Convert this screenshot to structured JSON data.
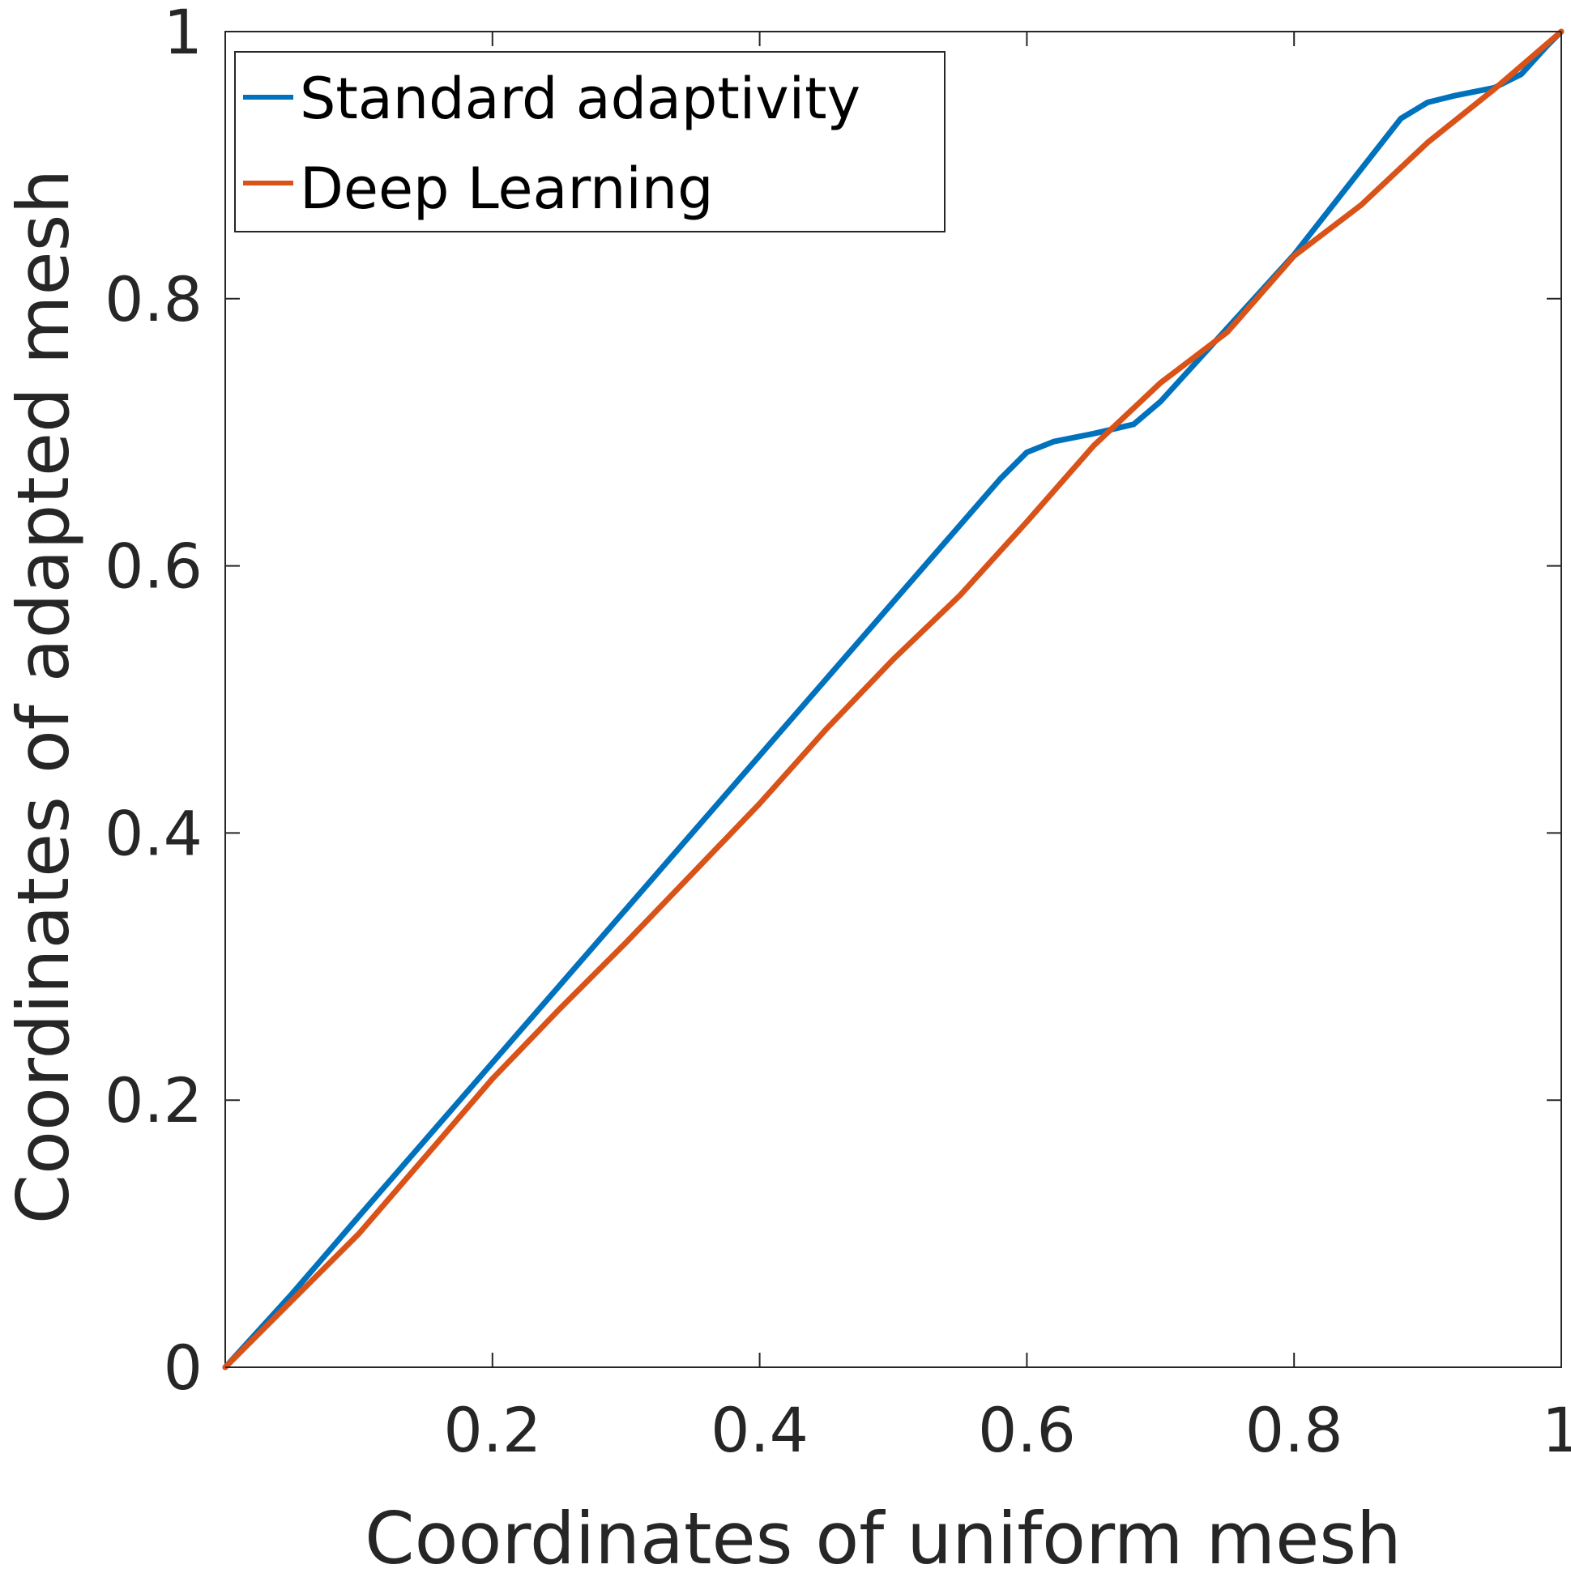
{
  "chart_data": {
    "type": "line",
    "title": "",
    "xlabel": "Coordinates of uniform mesh",
    "ylabel": "Coordinates of adapted mesh",
    "xlim": [
      0,
      1
    ],
    "ylim": [
      0,
      1
    ],
    "x_ticks": [
      0.2,
      0.4,
      0.6,
      0.8,
      1
    ],
    "x_tick_labels": [
      "0.2",
      "0.4",
      "0.6",
      "0.8",
      "1"
    ],
    "y_ticks": [
      0,
      0.2,
      0.4,
      0.6,
      0.8,
      1
    ],
    "y_tick_labels": [
      "0",
      "0.2",
      "0.4",
      "0.6",
      "0.8",
      "1"
    ],
    "grid": false,
    "legend_position": "top-left",
    "series": [
      {
        "name": "Standard adaptivity",
        "color": "#0072BD",
        "x": [
          0,
          0.05,
          0.1,
          0.2,
          0.3,
          0.4,
          0.5,
          0.58,
          0.6,
          0.62,
          0.65,
          0.68,
          0.7,
          0.8,
          0.88,
          0.9,
          0.92,
          0.95,
          0.97,
          0.99,
          1.0
        ],
        "y": [
          0,
          0.055,
          0.113,
          0.228,
          0.343,
          0.458,
          0.573,
          0.665,
          0.685,
          0.693,
          0.699,
          0.706,
          0.723,
          0.833,
          0.935,
          0.947,
          0.952,
          0.958,
          0.968,
          0.99,
          1.0
        ]
      },
      {
        "name": "Deep Learning",
        "color": "#D95319",
        "x": [
          0,
          0.05,
          0.1,
          0.15,
          0.2,
          0.25,
          0.3,
          0.35,
          0.4,
          0.45,
          0.5,
          0.55,
          0.6,
          0.65,
          0.7,
          0.75,
          0.8,
          0.85,
          0.9,
          0.95,
          1.0
        ],
        "y": [
          0,
          0.05,
          0.1,
          0.158,
          0.216,
          0.268,
          0.318,
          0.37,
          0.422,
          0.478,
          0.53,
          0.578,
          0.633,
          0.69,
          0.737,
          0.775,
          0.832,
          0.87,
          0.917,
          0.957,
          1.0
        ]
      }
    ]
  }
}
